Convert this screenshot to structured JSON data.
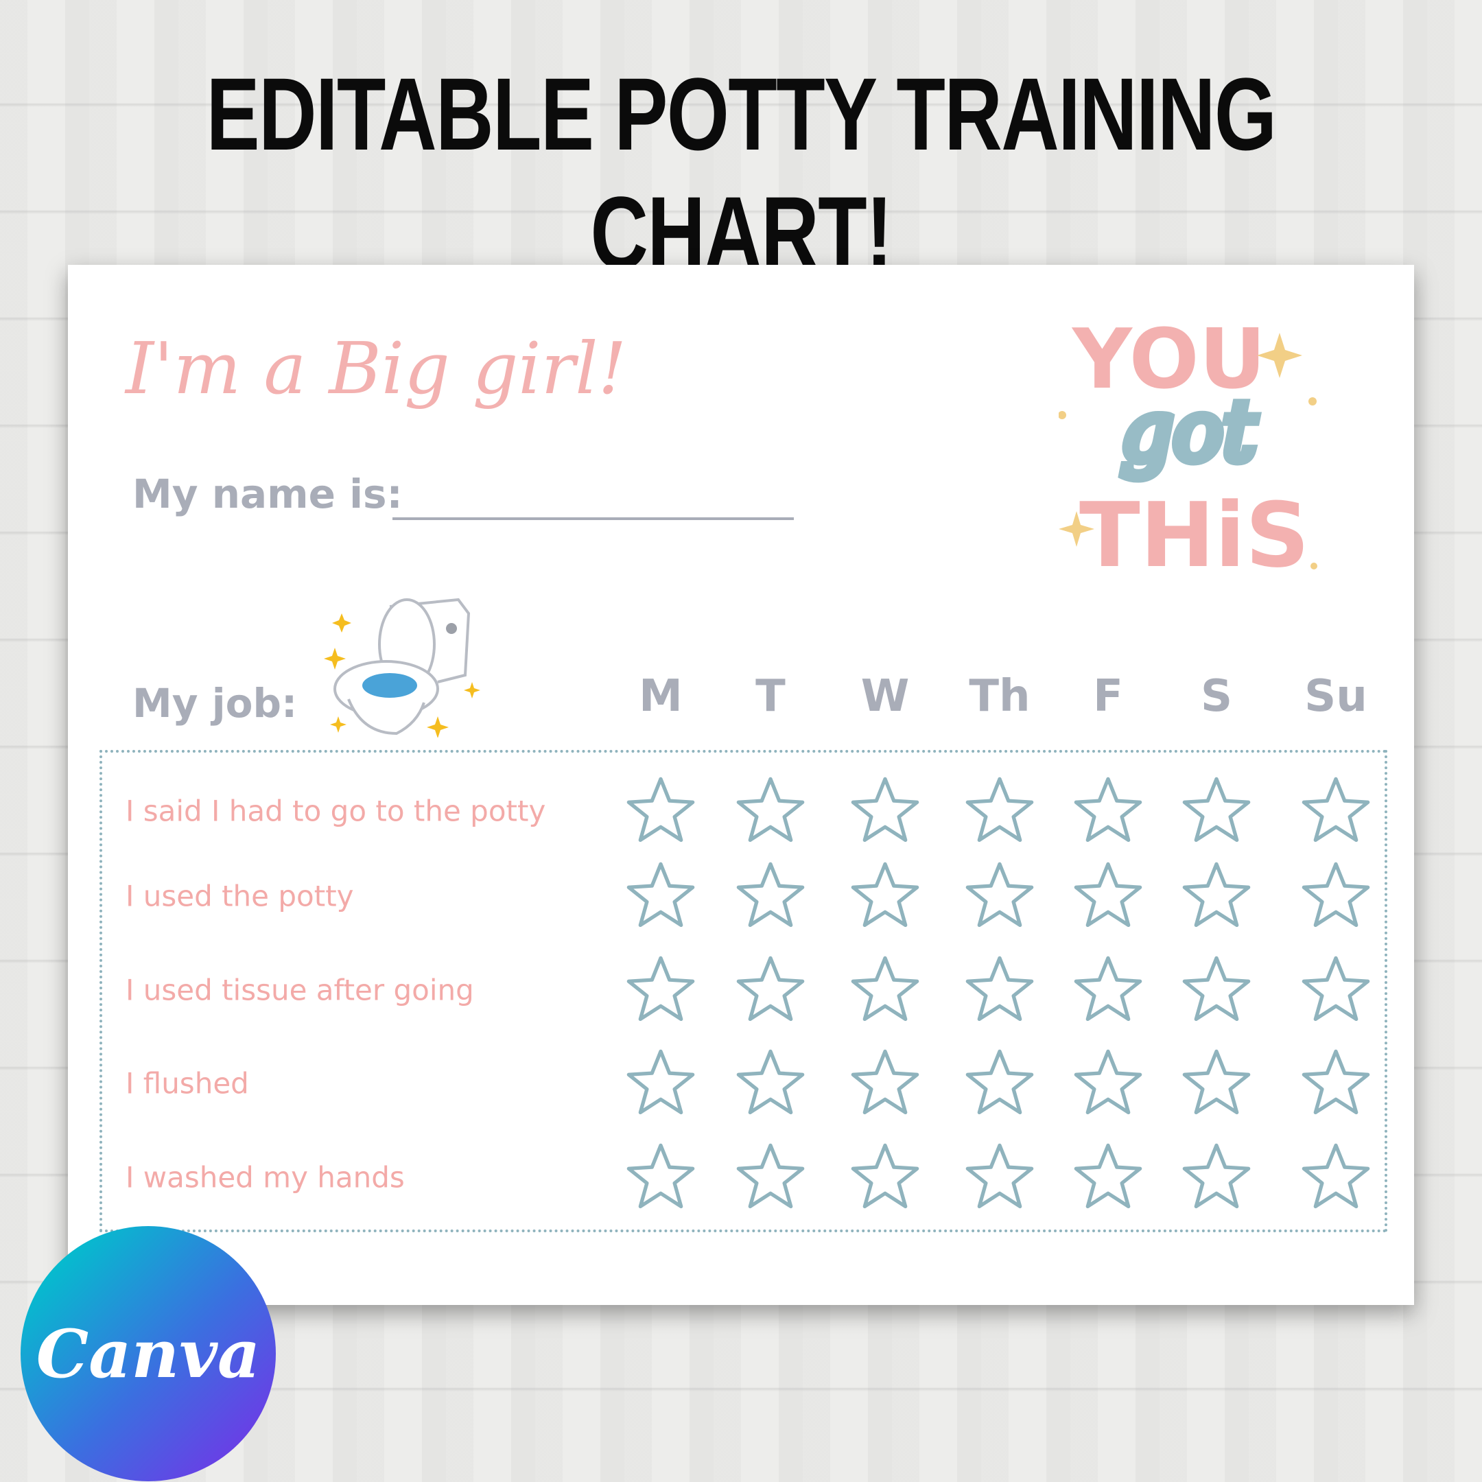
{
  "banner_title": "EDITABLE POTTY TRAINING CHART!",
  "chart": {
    "heading": "I'm a Big girl!",
    "name_label": "My name is:",
    "job_label": "My job:",
    "sticker_text": "YOU got THIS",
    "days": [
      "M",
      "T",
      "W",
      "Th",
      "F",
      "S",
      "Su"
    ],
    "jobs": [
      "I said I had to go to the potty",
      "I used the potty",
      "I used tissue after going",
      "I flushed",
      "I washed my hands"
    ]
  },
  "logo": "Canva",
  "colors": {
    "pink": "#f3b1b0",
    "blue": "#8fb3bd",
    "gray": "#a9adb8",
    "gold": "#f2cf86"
  }
}
